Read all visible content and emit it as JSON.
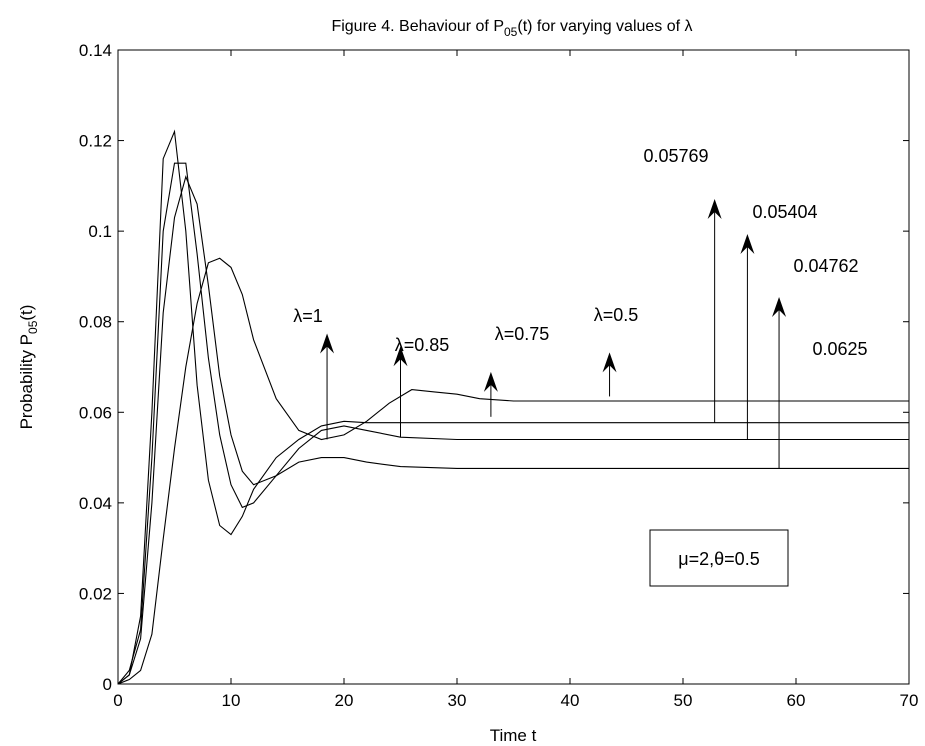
{
  "chart_data": {
    "type": "line",
    "title_parts": {
      "pre": "Figure 4. Behaviour of P",
      "sub": "05",
      "post": "(t) for varying values of λ"
    },
    "xlabel": "Time t",
    "ylabel_parts": {
      "pre": "Probability P",
      "sub": "05",
      "post": "(t)"
    },
    "xlim": [
      0,
      70
    ],
    "ylim": [
      0,
      0.14
    ],
    "x_ticks": [
      0,
      10,
      20,
      30,
      40,
      50,
      60,
      70
    ],
    "y_ticks": [
      0,
      0.02,
      0.04,
      0.06,
      0.08,
      0.1,
      0.12,
      0.14
    ],
    "y_tick_labels": [
      "0",
      "0.02",
      "0.04",
      "0.06",
      "0.08",
      "0.1",
      "0.12",
      "0.14"
    ],
    "series": [
      {
        "values": [
          [
            0,
            0
          ],
          [
            1,
            0.002
          ],
          [
            2,
            0.015
          ],
          [
            3,
            0.06
          ],
          [
            4,
            0.116
          ],
          [
            5,
            0.122
          ],
          [
            6,
            0.1
          ],
          [
            7,
            0.066
          ],
          [
            8,
            0.045
          ],
          [
            9,
            0.035
          ],
          [
            10,
            0.033
          ],
          [
            11,
            0.037
          ],
          [
            12,
            0.043
          ],
          [
            14,
            0.05
          ],
          [
            16,
            0.054
          ],
          [
            18,
            0.057
          ],
          [
            20,
            0.058
          ],
          [
            22,
            0.0577
          ],
          [
            25,
            0.0577
          ],
          [
            30,
            0.0577
          ],
          [
            40,
            0.0577
          ],
          [
            50,
            0.0577
          ],
          [
            70,
            0.0577
          ]
        ]
      },
      {
        "values": [
          [
            0,
            0
          ],
          [
            1,
            0.003
          ],
          [
            2,
            0.012
          ],
          [
            3,
            0.05
          ],
          [
            4,
            0.1
          ],
          [
            5,
            0.115
          ],
          [
            6,
            0.115
          ],
          [
            7,
            0.095
          ],
          [
            8,
            0.072
          ],
          [
            9,
            0.055
          ],
          [
            10,
            0.044
          ],
          [
            11,
            0.039
          ],
          [
            12,
            0.04
          ],
          [
            14,
            0.046
          ],
          [
            16,
            0.052
          ],
          [
            18,
            0.056
          ],
          [
            20,
            0.057
          ],
          [
            22,
            0.056
          ],
          [
            25,
            0.0545
          ],
          [
            30,
            0.054
          ],
          [
            40,
            0.054
          ],
          [
            50,
            0.054
          ],
          [
            70,
            0.054
          ]
        ]
      },
      {
        "values": [
          [
            0,
            0
          ],
          [
            1,
            0.002
          ],
          [
            2,
            0.01
          ],
          [
            3,
            0.04
          ],
          [
            4,
            0.082
          ],
          [
            5,
            0.103
          ],
          [
            6,
            0.112
          ],
          [
            7,
            0.106
          ],
          [
            8,
            0.088
          ],
          [
            9,
            0.068
          ],
          [
            10,
            0.055
          ],
          [
            11,
            0.047
          ],
          [
            12,
            0.044
          ],
          [
            14,
            0.046
          ],
          [
            16,
            0.049
          ],
          [
            18,
            0.05
          ],
          [
            20,
            0.05
          ],
          [
            22,
            0.049
          ],
          [
            25,
            0.048
          ],
          [
            30,
            0.0476
          ],
          [
            40,
            0.0476
          ],
          [
            50,
            0.0476
          ],
          [
            70,
            0.0476
          ]
        ]
      },
      {
        "values": [
          [
            0,
            0
          ],
          [
            1,
            0.001
          ],
          [
            2,
            0.003
          ],
          [
            3,
            0.011
          ],
          [
            4,
            0.032
          ],
          [
            5,
            0.052
          ],
          [
            6,
            0.07
          ],
          [
            7,
            0.084
          ],
          [
            8,
            0.093
          ],
          [
            9,
            0.094
          ],
          [
            10,
            0.092
          ],
          [
            11,
            0.086
          ],
          [
            12,
            0.076
          ],
          [
            14,
            0.063
          ],
          [
            16,
            0.056
          ],
          [
            18,
            0.054
          ],
          [
            20,
            0.055
          ],
          [
            22,
            0.058
          ],
          [
            24,
            0.062
          ],
          [
            26,
            0.065
          ],
          [
            28,
            0.0645
          ],
          [
            30,
            0.064
          ],
          [
            32,
            0.063
          ],
          [
            35,
            0.0625
          ],
          [
            40,
            0.0625
          ],
          [
            50,
            0.0625
          ],
          [
            70,
            0.0625
          ]
        ]
      }
    ],
    "annotations": {
      "lambda_labels": [
        {
          "text": "λ=1",
          "x": 18.5,
          "y": 0.054
        },
        {
          "text": "λ=0.85",
          "x": 25.0,
          "y": 0.0545
        },
        {
          "text": "λ=0.75",
          "x": 33.0,
          "y": 0.059
        },
        {
          "text": "λ=0.5",
          "x": 43.5,
          "y": 0.0635
        }
      ],
      "value_labels": [
        {
          "text": "0.05769",
          "x": 52.8,
          "y": 0.0577
        },
        {
          "text": "0.05404",
          "x": 55.7,
          "y": 0.054
        },
        {
          "text": "0.04762",
          "x": 58.5,
          "y": 0.0476
        },
        {
          "text": "0.0625",
          "x": 65.0,
          "y": 0.0625
        }
      ],
      "param_box": "μ=2,θ=0.5"
    }
  }
}
